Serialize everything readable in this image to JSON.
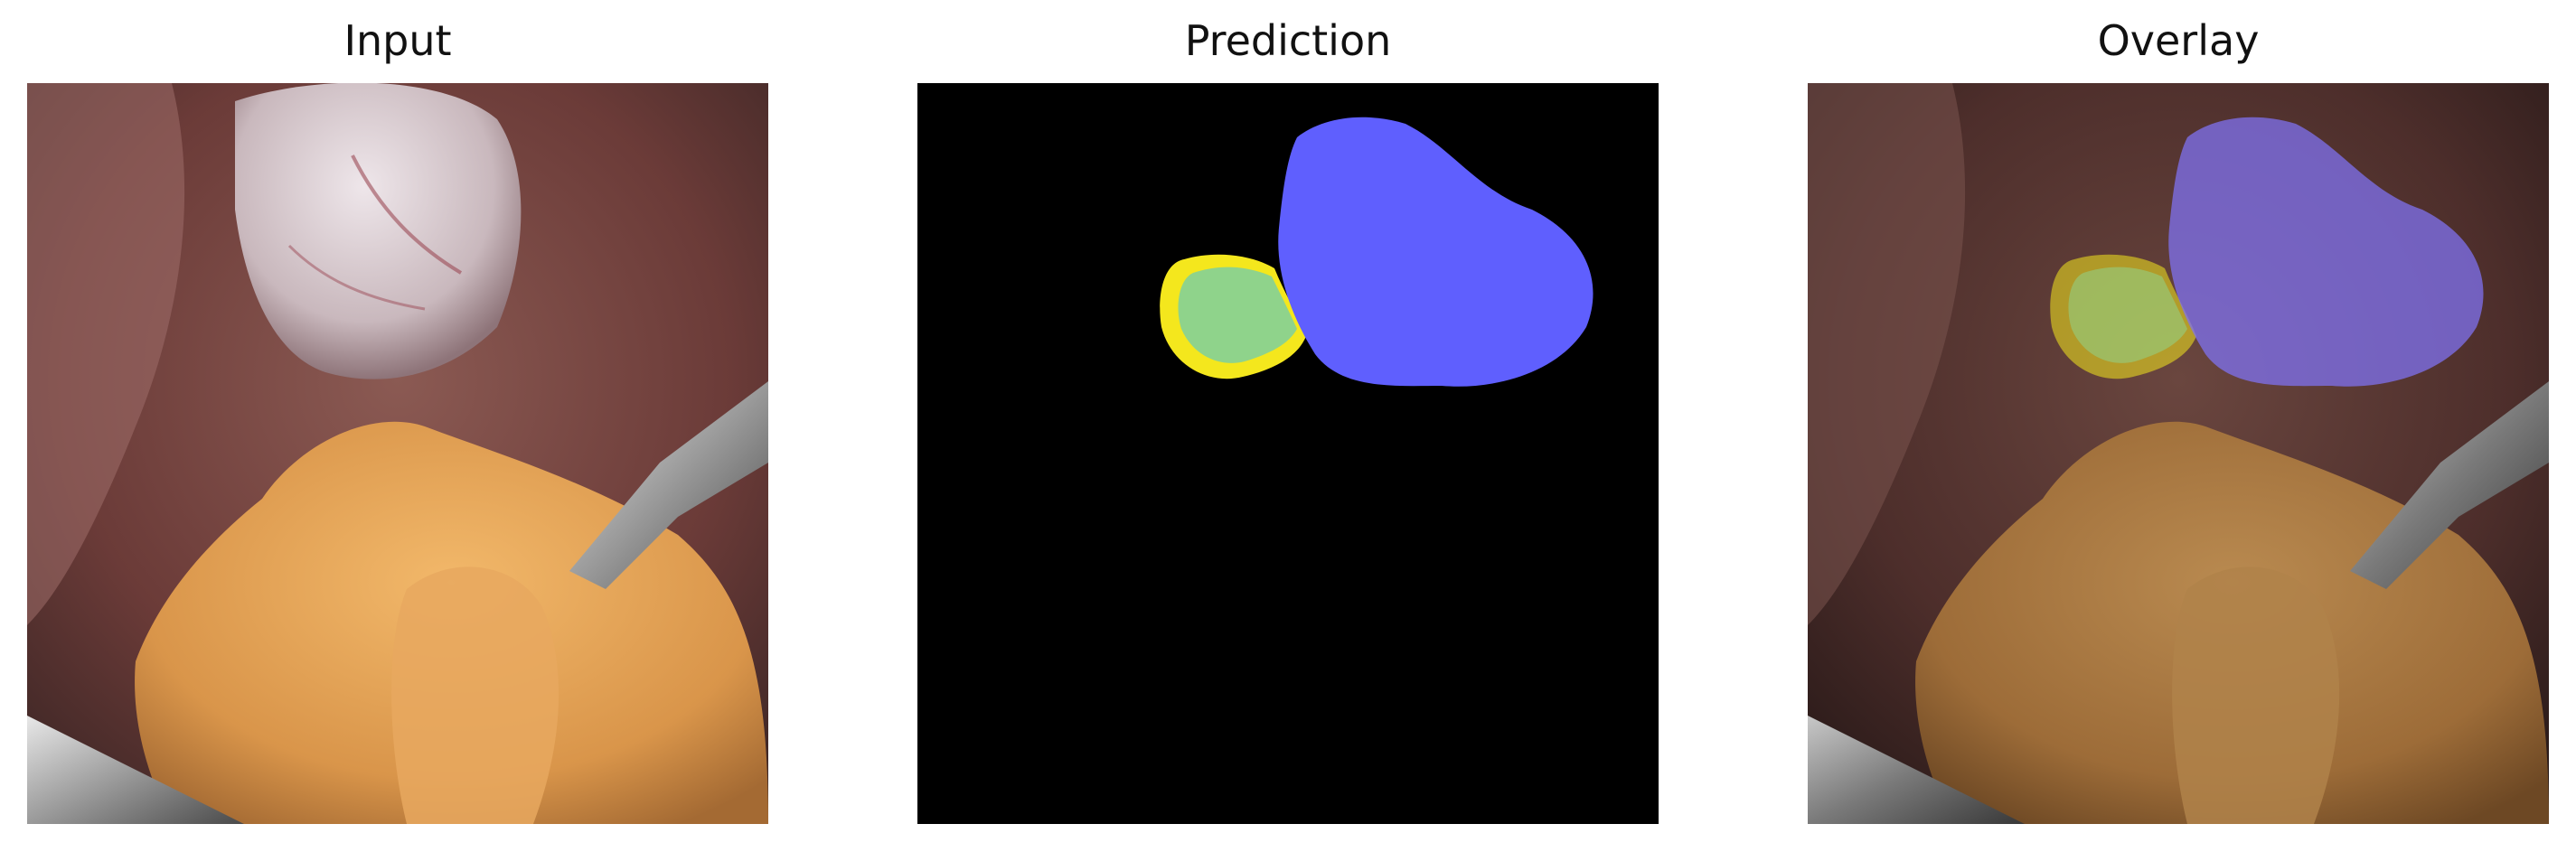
{
  "panels": [
    {
      "title": "Input"
    },
    {
      "title": "Prediction"
    },
    {
      "title": "Overlay"
    }
  ],
  "colors": {
    "background": "#000000",
    "class_blue": "#5f5ffe",
    "class_green": "#8fd38b",
    "class_yellow": "#f4e71d",
    "tissue_fat": "#e3a257",
    "tissue_wall": "#7a4a45",
    "instrument": "#b9b9b9"
  },
  "legend": []
}
